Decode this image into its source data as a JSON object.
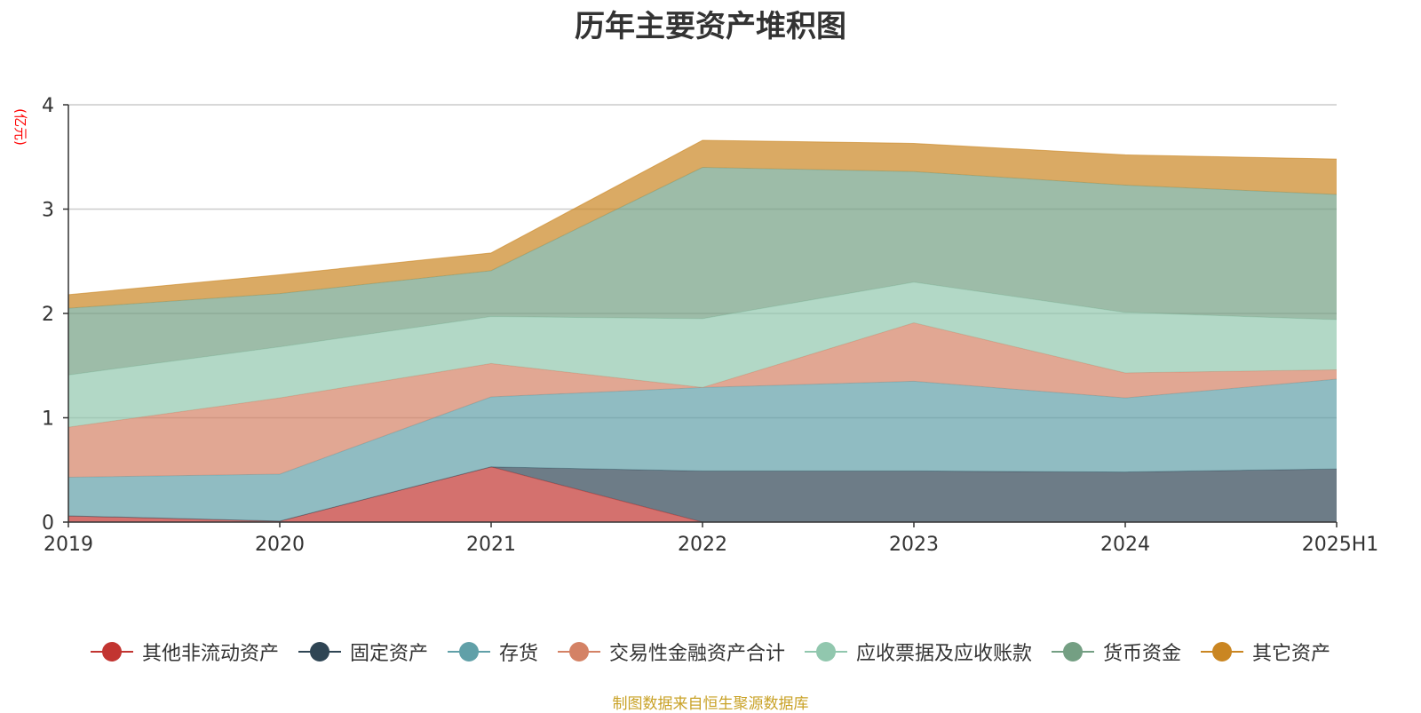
{
  "chart_data": {
    "type": "area",
    "stacked": true,
    "title": "历年主要资产堆积图",
    "ylabel": "(亿元)",
    "categories": [
      "2019",
      "2020",
      "2021",
      "2022",
      "2023",
      "2024",
      "2025H1"
    ],
    "ylim": [
      0,
      4
    ],
    "yticks": [
      0,
      1,
      2,
      3,
      4
    ],
    "grid": true,
    "legend_position": "bottom",
    "series": [
      {
        "name": "其他非流动资产",
        "color": "#c23531",
        "values": [
          0.06,
          0.01,
          0.53,
          0.0,
          0.0,
          0.0,
          0.0
        ]
      },
      {
        "name": "固定资产",
        "color": "#2f4554",
        "values": [
          0.0,
          0.0,
          0.0,
          0.49,
          0.49,
          0.48,
          0.51
        ]
      },
      {
        "name": "存货",
        "color": "#61a0a8",
        "values": [
          0.37,
          0.45,
          0.67,
          0.8,
          0.86,
          0.71,
          0.86
        ]
      },
      {
        "name": "交易性金融资产合计",
        "color": "#d48265",
        "values": [
          0.48,
          0.73,
          0.32,
          0.0,
          0.56,
          0.24,
          0.09
        ]
      },
      {
        "name": "应收票据及应收账款",
        "color": "#91c7ae",
        "values": [
          0.5,
          0.49,
          0.45,
          0.66,
          0.39,
          0.58,
          0.48
        ]
      },
      {
        "name": "货币资金",
        "color": "#749f83",
        "values": [
          0.64,
          0.51,
          0.44,
          1.45,
          1.06,
          1.22,
          1.2
        ]
      },
      {
        "name": "其它资产",
        "color": "#ca8622",
        "values": [
          0.13,
          0.18,
          0.17,
          0.26,
          0.27,
          0.29,
          0.34
        ]
      }
    ]
  },
  "source_note": "制图数据来自恒生聚源数据库"
}
